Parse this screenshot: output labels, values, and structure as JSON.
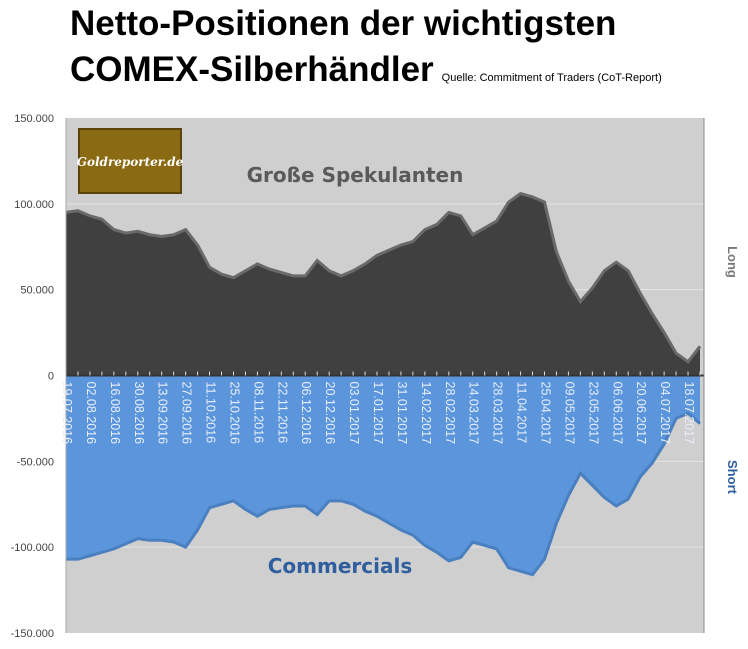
{
  "chart_data": {
    "type": "area",
    "title_line1": "Netto-Positionen der wichtigsten",
    "title_line2": "COMEX-Silberhändler",
    "source": "Quelle: Commitment of Traders (CoT-Report)",
    "logo_text": "Goldreporter.de",
    "y_ticks": [
      "150.000",
      "100.000",
      "50.000",
      "0",
      "-50.000",
      "-100.000",
      "-150.000"
    ],
    "ylim": [
      -150000,
      150000
    ],
    "right_labels": {
      "long": "Long",
      "short": "Short"
    },
    "x_labels": [
      "19.07.2016",
      "02.08.2016",
      "16.08.2016",
      "30.08.2016",
      "13.09.2016",
      "27.09.2016",
      "11.10.2016",
      "25.10.2016",
      "08.11.2016",
      "22.11.2016",
      "06.12.2016",
      "20.12.2016",
      "03.01.2017",
      "17.01.2017",
      "31.01.2017",
      "14.02.2017",
      "28.02.2017",
      "14.03.2017",
      "28.03.2017",
      "11.04.2017",
      "25.04.2017",
      "09.05.2017",
      "23.05.2017",
      "06.06.2017",
      "20.06.2017",
      "04.07.2017",
      "18.07.2017"
    ],
    "series": [
      {
        "name": "Große Spekulanten",
        "color": "#404040",
        "values": [
          95000,
          96000,
          93000,
          91000,
          85000,
          83000,
          84000,
          82000,
          81000,
          82000,
          85000,
          76000,
          63000,
          59000,
          57000,
          61000,
          65000,
          62000,
          60000,
          58000,
          58000,
          67000,
          61000,
          58000,
          61000,
          65000,
          70000,
          73000,
          76000,
          78000,
          85000,
          88000,
          95000,
          93000,
          82000,
          86000,
          90000,
          101000,
          106000,
          104000,
          101000,
          72000,
          55000,
          43000,
          51000,
          61000,
          66000,
          61000,
          48000,
          36000,
          25000,
          13000,
          8000,
          17000
        ]
      },
      {
        "name": "Commercials",
        "color": "#5b96dc",
        "values": [
          -107000,
          -107000,
          -105000,
          -103000,
          -101000,
          -98000,
          -95000,
          -96000,
          -96000,
          -97000,
          -100000,
          -90000,
          -77000,
          -75000,
          -73000,
          -78000,
          -82000,
          -78000,
          -77000,
          -76000,
          -76000,
          -81000,
          -73000,
          -73000,
          -75000,
          -79000,
          -82000,
          -86000,
          -90000,
          -93000,
          -99000,
          -103000,
          -108000,
          -106000,
          -97000,
          -99000,
          -101000,
          -112000,
          -114000,
          -116000,
          -107000,
          -86000,
          -70000,
          -57000,
          -64000,
          -71000,
          -76000,
          -72000,
          -59000,
          -51000,
          -40000,
          -25000,
          -22000,
          -28000
        ]
      }
    ]
  }
}
